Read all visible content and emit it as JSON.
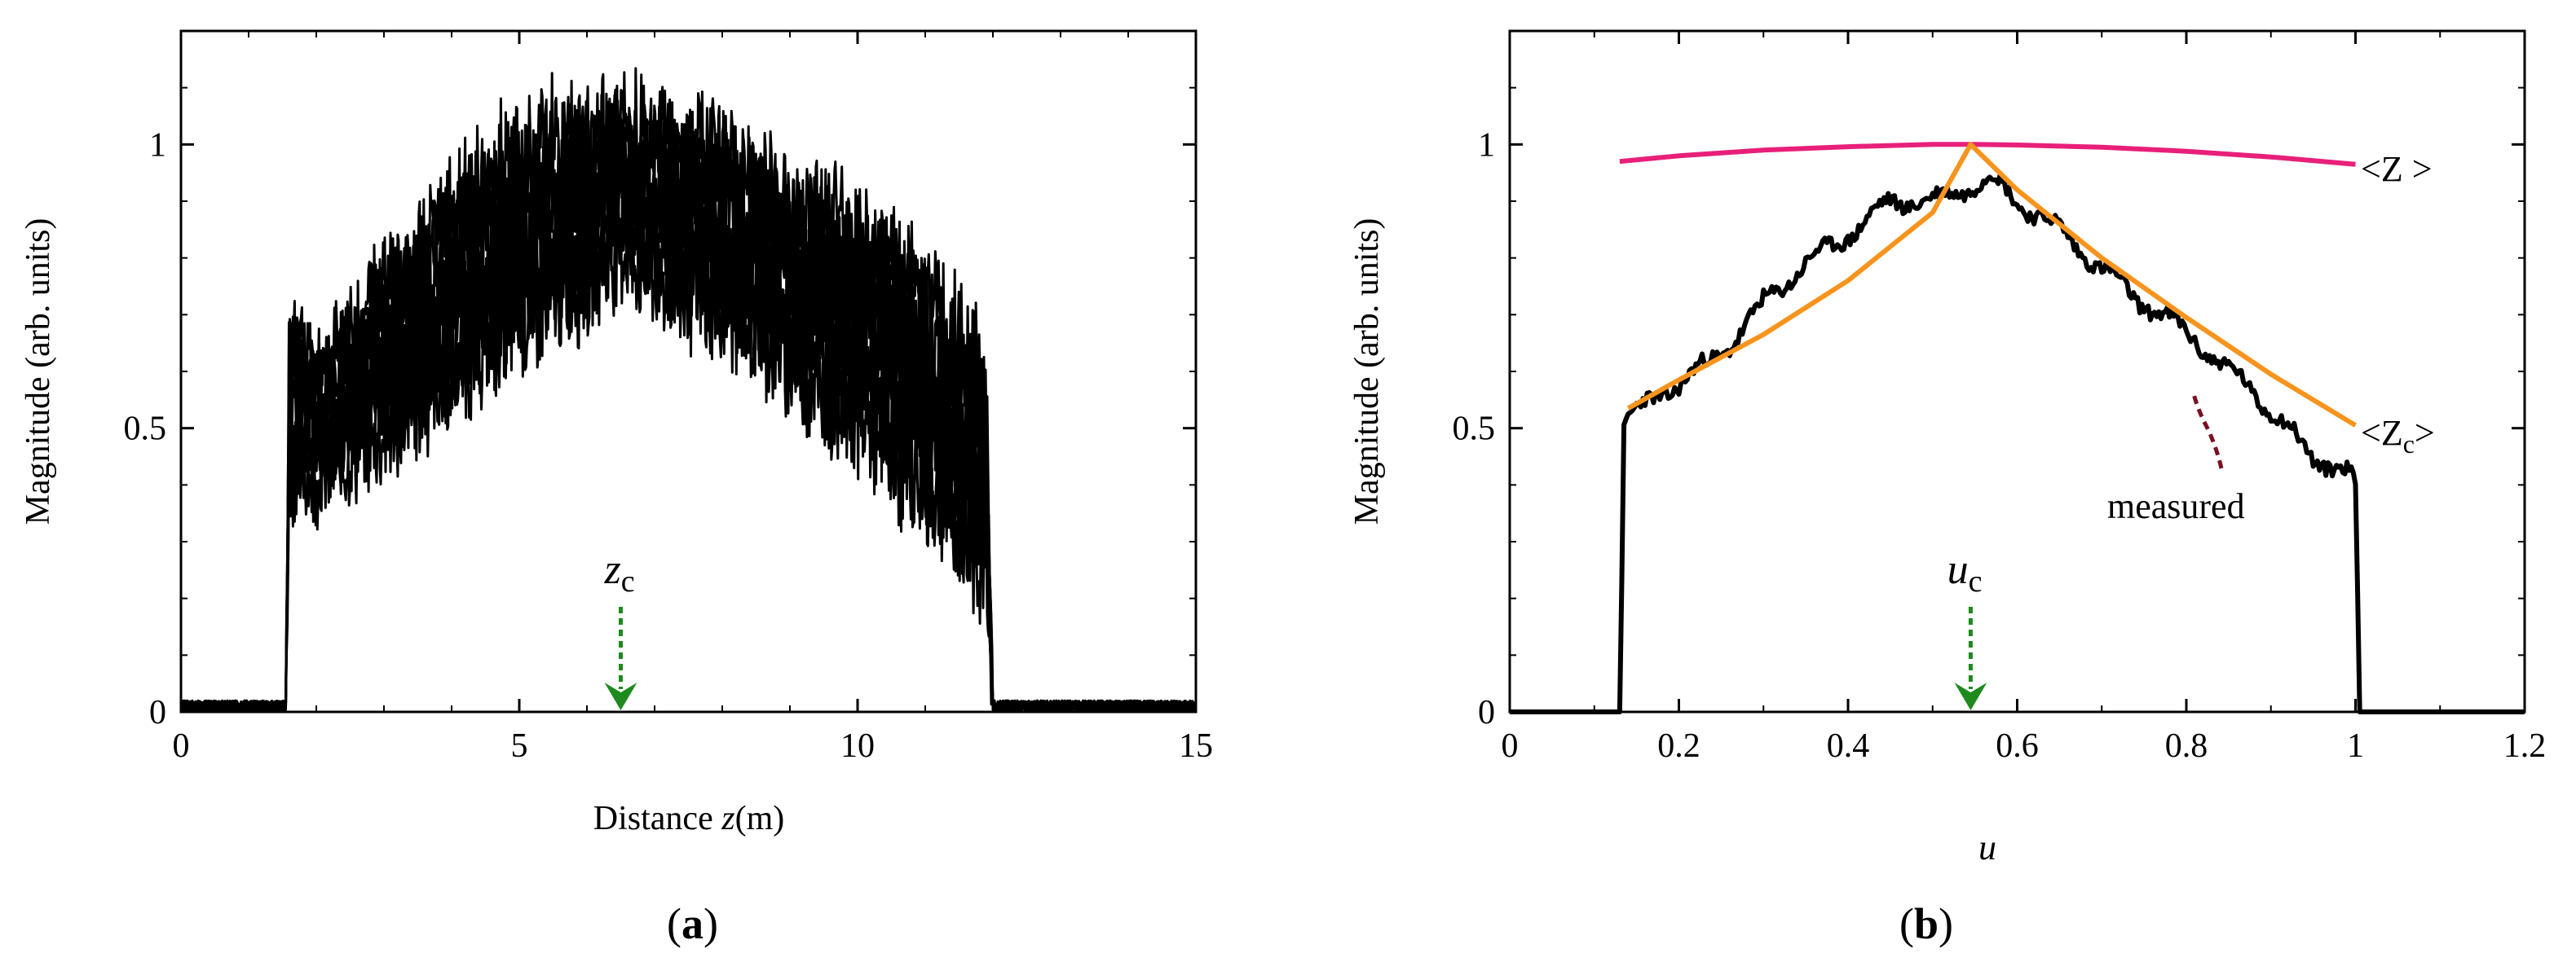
{
  "chart_data": [
    {
      "panel": "(a)",
      "panel_letter": "a",
      "type": "line",
      "xlabel_prefix": "Distance ",
      "xlabel_var": "z",
      "xlabel_suffix": "(m)",
      "ylabel": "Magnitude (arb. units)",
      "xlim": [
        0,
        15
      ],
      "ylim": [
        0,
        1.2
      ],
      "xticks": [
        0,
        5,
        10,
        15
      ],
      "yticks": [
        0,
        0.5,
        1
      ],
      "xtick_labels": [
        "0",
        "5",
        "10",
        "15"
      ],
      "ytick_labels": [
        "0",
        "0.5",
        "1"
      ],
      "grid": false,
      "series": [
        {
          "style": "noisy band of overlapping traces",
          "color": "#000000",
          "x": [
            0,
            1.55,
            1.6,
            2,
            3,
            4,
            5,
            6,
            6.5,
            7,
            8,
            9,
            10,
            11,
            11.8,
            11.9,
            12,
            15
          ],
          "upper": [
            0.02,
            0.02,
            0.72,
            0.62,
            0.78,
            0.92,
            1.03,
            1.07,
            1.08,
            1.06,
            1.02,
            0.95,
            0.88,
            0.78,
            0.65,
            0.6,
            0.02,
            0.01
          ],
          "lower": [
            0.0,
            0.0,
            0.38,
            0.38,
            0.45,
            0.55,
            0.65,
            0.72,
            0.78,
            0.72,
            0.67,
            0.58,
            0.48,
            0.35,
            0.22,
            0.2,
            0.0,
            0.0
          ]
        }
      ],
      "annotations": [
        {
          "text_main": "z",
          "text_sub": "c",
          "x": 6.5,
          "arrow_color": "#1e8a1e"
        }
      ]
    },
    {
      "panel": "(b)",
      "panel_letter": "b",
      "type": "line",
      "xlabel": "u",
      "ylabel": "Magnitude (arb. units)",
      "xlim": [
        0,
        1.2
      ],
      "ylim": [
        0,
        1.2
      ],
      "xticks": [
        0,
        0.2,
        0.4,
        0.6,
        0.8,
        1,
        1.2
      ],
      "yticks": [
        0,
        0.5,
        1
      ],
      "xtick_labels": [
        "0",
        "0.2",
        "0.4",
        "0.6",
        "0.8",
        "1",
        "1.2"
      ],
      "ytick_labels": [
        "0",
        "0.5",
        "1"
      ],
      "grid": false,
      "series": [
        {
          "label": "<Z >",
          "color": "#e8207a",
          "x": [
            0.13,
            0.2,
            0.3,
            0.4,
            0.5,
            0.55,
            0.6,
            0.7,
            0.8,
            0.9,
            1.0
          ],
          "y": [
            0.97,
            0.98,
            0.99,
            0.996,
            1.0,
            1.0,
            0.999,
            0.995,
            0.988,
            0.978,
            0.965
          ]
        },
        {
          "label": "<Zc>",
          "color": "#f7941d",
          "x": [
            0.14,
            0.2,
            0.3,
            0.4,
            0.5,
            0.545,
            0.6,
            0.7,
            0.8,
            0.9,
            1.0
          ],
          "y": [
            0.535,
            0.585,
            0.665,
            0.76,
            0.88,
            1.0,
            0.92,
            0.8,
            0.695,
            0.595,
            0.505
          ]
        },
        {
          "label": "measured",
          "color": "#000000",
          "x": [
            0,
            0.13,
            0.135,
            0.14,
            0.16,
            0.2,
            0.25,
            0.3,
            0.35,
            0.4,
            0.45,
            0.5,
            0.55,
            0.57,
            0.6,
            0.65,
            0.7,
            0.75,
            0.8,
            0.85,
            0.87,
            0.9,
            0.95,
            0.99,
            1.0,
            1.005,
            1.2
          ],
          "y": [
            0.0,
            0.0,
            0.5,
            0.52,
            0.54,
            0.58,
            0.63,
            0.72,
            0.79,
            0.84,
            0.9,
            0.9,
            0.93,
            0.94,
            0.9,
            0.85,
            0.78,
            0.72,
            0.67,
            0.6,
            0.58,
            0.53,
            0.45,
            0.42,
            0.4,
            0.0,
            0.0
          ]
        }
      ],
      "annotations": [
        {
          "text_main": "u",
          "text_sub": "c",
          "x": 0.545,
          "arrow_color": "#1e8a1e"
        },
        {
          "text": "measured",
          "pointer_color": "#7a1020"
        },
        {
          "text_main": "<Z",
          "text_sub": "c",
          "text_end": ">"
        },
        {
          "text_main": "<Z >"
        }
      ]
    }
  ]
}
